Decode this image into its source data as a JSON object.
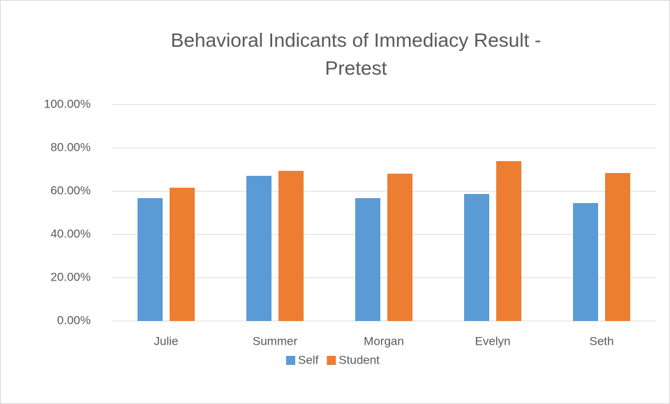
{
  "chart_data": {
    "type": "bar",
    "title": "Behavioral Indicants of Immediacy Result - Pretest",
    "categories": [
      "Julie",
      "Summer",
      "Morgan",
      "Evelyn",
      "Seth"
    ],
    "series": [
      {
        "name": "Self",
        "color": "#5b9bd5",
        "values": [
          56.8,
          67.1,
          56.8,
          58.7,
          54.5
        ]
      },
      {
        "name": "Student",
        "color": "#ed7d31",
        "values": [
          61.6,
          69.4,
          68.1,
          73.9,
          68.4
        ]
      }
    ],
    "ylim": [
      0,
      100
    ],
    "yticks": [
      {
        "value": 0,
        "label": "0.00%"
      },
      {
        "value": 20,
        "label": "20.00%"
      },
      {
        "value": 40,
        "label": "40.00%"
      },
      {
        "value": 60,
        "label": "60.00%"
      },
      {
        "value": 80,
        "label": "80.00%"
      },
      {
        "value": 100,
        "label": "100.00%"
      }
    ],
    "grid": true,
    "legend": "bottom"
  }
}
